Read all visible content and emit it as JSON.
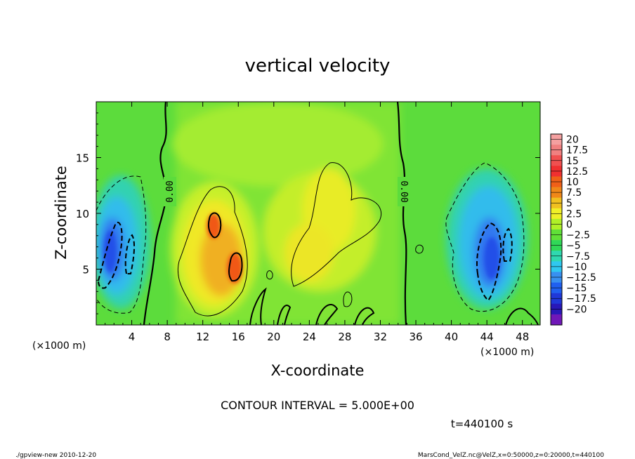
{
  "chart_data": {
    "type": "heatmap",
    "title": "vertical velocity",
    "xlabel": "X-coordinate",
    "ylabel": "Z-coordinate",
    "x_unit": "(×1000 m)",
    "x_unit_right": "(×1000 m)",
    "xlim": [
      0,
      50
    ],
    "ylim": [
      0,
      20
    ],
    "x_ticks": [
      4,
      8,
      12,
      16,
      20,
      24,
      28,
      32,
      36,
      40,
      44,
      48
    ],
    "y_ticks": [
      5,
      10,
      15
    ],
    "contour_label_left": "0.00",
    "contour_label_right": "0.00",
    "contour_interval": "CONTOUR INTERVAL = 5.000E+00",
    "time_label": "t=440100 s",
    "colorbar": {
      "levels": [
        20,
        17.5,
        15,
        12.5,
        10,
        7.5,
        5,
        2.5,
        0,
        -2.5,
        -5,
        -7.5,
        -10,
        -12.5,
        -15,
        -17.5,
        -20
      ],
      "colors": [
        "#f4a0a0",
        "#f08080",
        "#f05050",
        "#f03030",
        "#f06018",
        "#f08818",
        "#f0c020",
        "#f0f028",
        "#b0f028",
        "#60e038",
        "#30d858",
        "#30d8b0",
        "#30c8f0",
        "#3890f0",
        "#2060f0",
        "#2038d8",
        "#2818b8",
        "#7018b8"
      ]
    }
  },
  "footer": {
    "left": "./gpview-new  2010-12-20",
    "right": "MarsCond_VelZ.nc@VelZ,x=0:50000,z=0:20000,t=440100"
  }
}
